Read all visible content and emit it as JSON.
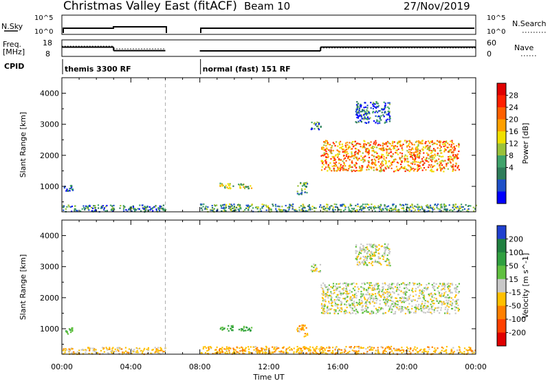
{
  "header": {
    "station": "Christmas Valley East (fitACF)",
    "beam": "Beam 10",
    "date": "27/Nov/2019"
  },
  "status_panels": {
    "nsky_label": "N.Sky",
    "nsearch_label": "N.Search",
    "freq_label_line1": "Freq.",
    "freq_label_line2": "[MHz]",
    "nave_label": "Nave",
    "cpid_label": "CPID",
    "noise_left_ticks": [
      "10^5",
      "10^0"
    ],
    "noise_right_ticks": [
      "10^5",
      "10^0"
    ],
    "freq_left_ticks": [
      "18",
      "8"
    ],
    "nave_right_ticks": [
      "60",
      "0"
    ],
    "cpid_segments": [
      {
        "start_hour": 0,
        "end_hour": 8,
        "label": "themis 3300 RF"
      },
      {
        "start_hour": 8,
        "end_hour": 24,
        "label": "normal (fast) 151 RF"
      }
    ],
    "freq_steps": [
      {
        "start_hour": 0,
        "end_hour": 3,
        "freq_mhz": 13.9
      },
      {
        "start_hour": 3,
        "end_hour": 6,
        "freq_mhz": 10.7
      },
      {
        "start_hour": 8,
        "end_hour": 15,
        "freq_mhz": 10.5
      },
      {
        "start_hour": 15,
        "end_hour": 24,
        "freq_mhz": 13.9
      }
    ],
    "nave_steps": [
      {
        "start_hour": 0,
        "end_hour": 3,
        "nave": 43
      },
      {
        "start_hour": 3,
        "end_hour": 6,
        "nave": 30
      },
      {
        "start_hour": 8,
        "end_hour": 15,
        "nave": 20
      },
      {
        "start_hour": 15,
        "end_hour": 24,
        "nave": 34
      }
    ]
  },
  "chart_data": [
    {
      "type": "heatmap",
      "parameter": "Power",
      "ylabel": "Slant Range [km]",
      "xlabel": "Time UT",
      "colorbar_label": "Power [dB]",
      "xlim_hours": [
        0,
        24
      ],
      "ylim_km": [
        180,
        4500
      ],
      "xticks": [
        "00:00",
        "04:00",
        "08:00",
        "12:00",
        "16:00",
        "20:00",
        "00:00"
      ],
      "yticks": [
        1000,
        2000,
        3000,
        4000
      ],
      "colorbar_ticks": [
        4,
        8,
        12,
        16,
        20,
        24,
        28
      ],
      "colorbar_colors": [
        "#0000ff",
        "#1e50c8",
        "#2e7d5a",
        "#3fa36b",
        "#9ac23a",
        "#f0e000",
        "#ffa000",
        "#ff6000",
        "#ff2000",
        "#e00000"
      ],
      "data_gap_hours": [
        6,
        8
      ],
      "echo_regions": [
        {
          "t0": 0.0,
          "t1": 6.0,
          "r0": 200,
          "r1": 420,
          "value_db": 8
        },
        {
          "t0": 0.1,
          "t1": 0.6,
          "r0": 850,
          "r1": 1050,
          "value_db": 6
        },
        {
          "t0": 8.0,
          "t1": 24.0,
          "r0": 200,
          "r1": 450,
          "value_db": 10
        },
        {
          "t0": 9.1,
          "t1": 9.9,
          "r0": 950,
          "r1": 1120,
          "value_db": 14
        },
        {
          "t0": 10.2,
          "t1": 11.0,
          "r0": 950,
          "r1": 1100,
          "value_db": 13
        },
        {
          "t0": 13.6,
          "t1": 14.2,
          "r0": 750,
          "r1": 1150,
          "value_db": 10
        },
        {
          "t0": 14.4,
          "t1": 15.0,
          "r0": 2850,
          "r1": 3100,
          "value_db": 8
        },
        {
          "t0": 15.0,
          "t1": 23.0,
          "r0": 1500,
          "r1": 2500,
          "value_db": 20
        },
        {
          "t0": 17.0,
          "t1": 19.0,
          "r0": 3050,
          "r1": 3750,
          "value_db": 6
        }
      ]
    },
    {
      "type": "heatmap",
      "parameter": "Velocity",
      "ylabel": "Slant Range [km]",
      "xlabel": "Time UT",
      "colorbar_label": "Velocity [m s^-1]",
      "xlim_hours": [
        0,
        24
      ],
      "ylim_km": [
        180,
        4500
      ],
      "xticks": [
        "00:00",
        "04:00",
        "08:00",
        "12:00",
        "16:00",
        "20:00",
        "00:00"
      ],
      "yticks": [
        1000,
        2000,
        3000,
        4000
      ],
      "colorbar_ticks": [
        200,
        100,
        50,
        15,
        -15,
        -50,
        -100,
        -200
      ],
      "colorbar_colors": [
        "#2040d0",
        "#208040",
        "#30a040",
        "#60c040",
        "#c8c8c8",
        "#ffc000",
        "#ff8000",
        "#ff4000",
        "#e00000"
      ],
      "data_gap_hours": [
        6,
        8
      ],
      "echo_regions": [
        {
          "t0": 0.0,
          "t1": 6.0,
          "r0": 200,
          "r1": 420,
          "value_ms": -30
        },
        {
          "t0": 0.1,
          "t1": 0.6,
          "r0": 850,
          "r1": 1050,
          "value_ms": 40
        },
        {
          "t0": 8.0,
          "t1": 24.0,
          "r0": 200,
          "r1": 450,
          "value_ms": -40
        },
        {
          "t0": 9.1,
          "t1": 9.9,
          "r0": 950,
          "r1": 1120,
          "value_ms": 60
        },
        {
          "t0": 10.2,
          "t1": 11.0,
          "r0": 950,
          "r1": 1100,
          "value_ms": 60
        },
        {
          "t0": 13.6,
          "t1": 14.2,
          "r0": 750,
          "r1": 1150,
          "value_ms": -40
        },
        {
          "t0": 14.4,
          "t1": 15.0,
          "r0": 2850,
          "r1": 3100,
          "value_ms": 0
        },
        {
          "t0": 15.0,
          "t1": 23.0,
          "r0": 1500,
          "r1": 2500,
          "value_ms": 0
        },
        {
          "t0": 17.0,
          "t1": 19.0,
          "r0": 3050,
          "r1": 3750,
          "value_ms": 0
        }
      ]
    }
  ]
}
